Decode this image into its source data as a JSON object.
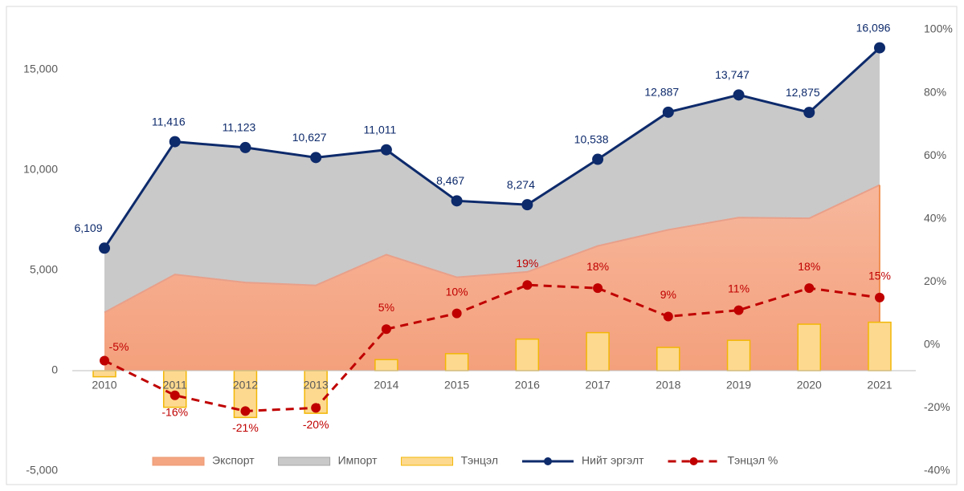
{
  "chart_data": {
    "type": "combo",
    "categories": [
      "2010",
      "2011",
      "2012",
      "2013",
      "2014",
      "2015",
      "2016",
      "2017",
      "2018",
      "2019",
      "2020",
      "2021"
    ],
    "series": [
      {
        "name": "Экспорт",
        "type": "area",
        "color": "#f4a582",
        "values": [
          2902,
          4795,
          4394,
          4251,
          5781,
          4657,
          4923,
          6217,
          7023,
          7630,
          7596,
          9255
        ]
      },
      {
        "name": "Импорт",
        "type": "area",
        "color": "#c9c9c9",
        "values": [
          3207,
          6621,
          6729,
          6376,
          5230,
          3810,
          3351,
          4321,
          5864,
          6117,
          5279,
          6841
        ]
      },
      {
        "name": "Тэнцэл",
        "type": "bar",
        "color": "#fdd98f",
        "values": [
          -305,
          -1826,
          -2335,
          -2125,
          551,
          847,
          1572,
          1896,
          1159,
          1513,
          2317,
          2414
        ]
      },
      {
        "name": "Нийт эргэлт",
        "type": "line",
        "color": "#0d2a6b",
        "values": [
          6109,
          11416,
          11123,
          10627,
          11011,
          8467,
          8274,
          10538,
          12887,
          13747,
          12875,
          16096
        ],
        "value_labels": [
          "6,109",
          "11,416",
          "11,123",
          "10,627",
          "11,011",
          "8,467",
          "8,274",
          "10,538",
          "12,887",
          "13,747",
          "12,875",
          "16,096"
        ]
      },
      {
        "name": "Тэнцэл %",
        "type": "line",
        "dashed": true,
        "axis": "y2",
        "color": "#c00000",
        "values": [
          -5,
          -16,
          -21,
          -20,
          5,
          10,
          19,
          18,
          9,
          11,
          18,
          15
        ],
        "value_labels": [
          "-5%",
          "-16%",
          "-21%",
          "-20%",
          "5%",
          "10%",
          "19%",
          "18%",
          "9%",
          "11%",
          "18%",
          "15%"
        ]
      }
    ],
    "ylim": [
      -5000,
      17000
    ],
    "yticks": [
      {
        "value": -5000,
        "label": "-5,000"
      },
      0,
      {
        "value": 5000,
        "label": "5,000"
      },
      {
        "value": 10000,
        "label": "10,000"
      },
      {
        "value": 15000,
        "label": "15,000"
      }
    ],
    "y2lim": [
      -40,
      100
    ],
    "y2ticks": [
      {
        "value": -40,
        "label": "-40%"
      },
      {
        "value": -20,
        "label": "-20%"
      },
      {
        "value": 0,
        "label": "0%"
      },
      {
        "value": 20,
        "label": "20%"
      },
      {
        "value": 40,
        "label": "40%"
      },
      {
        "value": 60,
        "label": "60%"
      },
      {
        "value": 80,
        "label": "80%"
      },
      {
        "value": 100,
        "label": "100%"
      }
    ],
    "legend": "bottom"
  }
}
